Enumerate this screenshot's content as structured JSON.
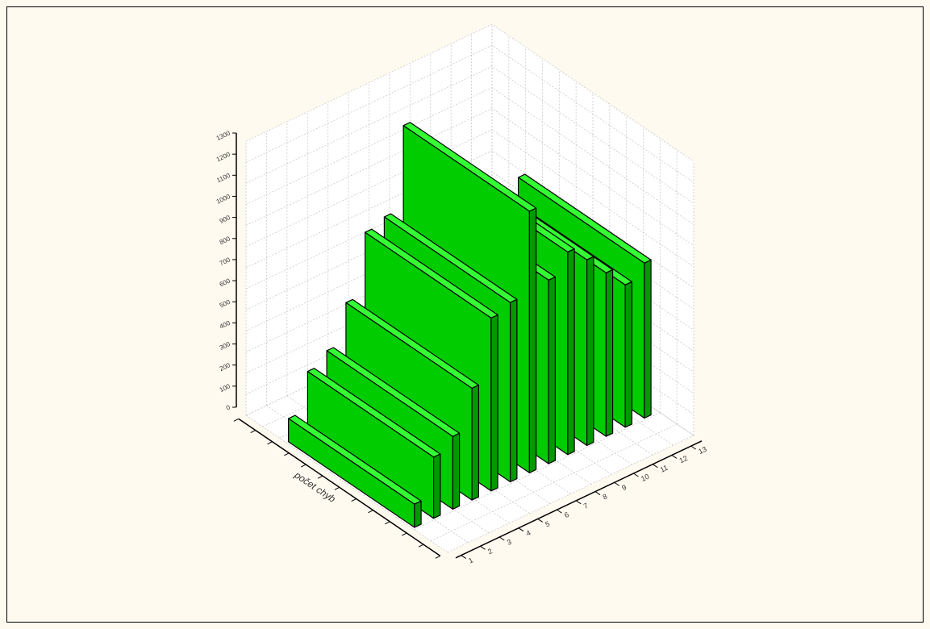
{
  "chart_data": {
    "type": "bar3d",
    "x_label": "počet chyb",
    "categories": [
      "1",
      "2",
      "3",
      "4",
      "5",
      "6",
      "7",
      "8",
      "9",
      "10",
      "11",
      "12",
      "13"
    ],
    "values": [
      110,
      290,
      345,
      530,
      820,
      850,
      1240,
      870,
      960,
      880,
      775,
      675,
      735
    ],
    "color": "#00cc00",
    "top_color": "#33ff33",
    "side_color": "#009900",
    "ylim": [
      0,
      1300
    ],
    "yticks": [
      0,
      100,
      200,
      300,
      400,
      500,
      600,
      700,
      800,
      900,
      1000,
      1100,
      1200,
      1300
    ],
    "grid": true
  }
}
